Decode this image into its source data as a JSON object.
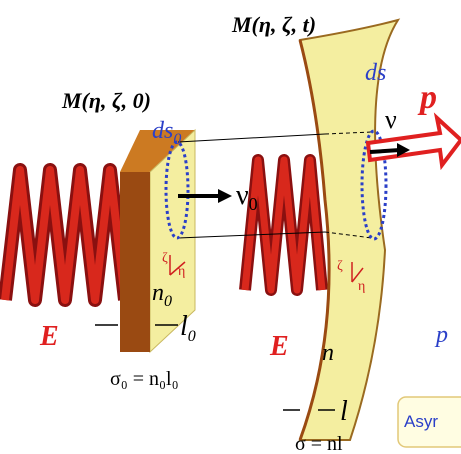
{
  "labels": {
    "m0": "M(η, ζ, 0)",
    "mt": "M(η, ζ, t)",
    "ds0": "ds",
    "ds0_sub": "0",
    "ds": "ds",
    "nu0": "ν",
    "nu0_sub": "0",
    "nu": "ν",
    "p": "p",
    "e_left": "E",
    "e_right": "E",
    "n0": "n",
    "n0_sub": "0",
    "l0": "l",
    "l0_sub": "0",
    "n": "n",
    "l": "l",
    "sigma0": "σ₀ = n₀l₀",
    "sigma": "σ = nl",
    "zeta_left": "ζ",
    "eta_left": "η",
    "zeta_right": "ζ",
    "eta_right": "η",
    "p_partial": "p",
    "box": "Asyr"
  }
}
